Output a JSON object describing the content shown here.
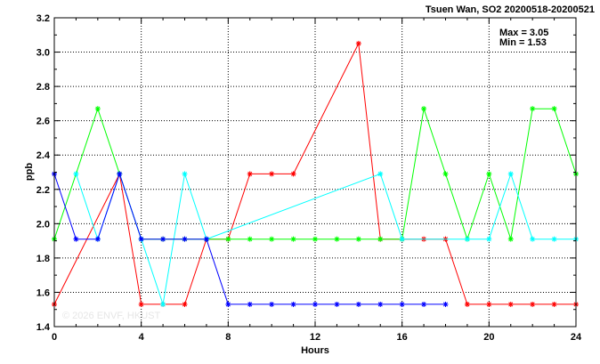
{
  "chart_data": {
    "type": "line",
    "title": "Tsuen Wan, SO2 20200518-20200521",
    "xlabel": "Hours",
    "ylabel": "ppb",
    "xlim": [
      0,
      24
    ],
    "ylim": [
      1.4,
      3.2
    ],
    "x_ticks": [
      0,
      4,
      8,
      12,
      16,
      20,
      24
    ],
    "x_tick_labels": [
      "0",
      "4",
      "8",
      "12",
      "16",
      "20",
      "24"
    ],
    "y_ticks": [
      1.4,
      1.6,
      1.8,
      2.0,
      2.2,
      2.4,
      2.6,
      2.8,
      3.0,
      3.2
    ],
    "y_tick_labels": [
      "1.4",
      "1.6",
      "1.8",
      "2.0",
      "2.2",
      "2.4",
      "2.6",
      "2.8",
      "3.0",
      "3.2"
    ],
    "grid": true,
    "stats": {
      "max": "Max = 3.05",
      "min": "Min = 1.53"
    },
    "watermark": "© 2026 ENVF, HKUST",
    "x": [
      0,
      1,
      2,
      3,
      4,
      5,
      6,
      7,
      8,
      9,
      10,
      11,
      12,
      13,
      14,
      15,
      16,
      17,
      18,
      19,
      20,
      21,
      22,
      23,
      24
    ],
    "series": [
      {
        "color": "#ff0000",
        "values": [
          1.53,
          null,
          null,
          2.29,
          1.53,
          1.53,
          1.53,
          1.91,
          1.91,
          2.29,
          2.29,
          2.29,
          null,
          null,
          3.05,
          1.91,
          1.91,
          1.91,
          1.91,
          1.53,
          1.53,
          1.53,
          1.53,
          1.53,
          1.53
        ]
      },
      {
        "color": "#00ff00",
        "values": [
          1.91,
          null,
          2.67,
          2.29,
          1.91,
          1.91,
          1.91,
          1.91,
          1.91,
          1.91,
          1.91,
          1.91,
          1.91,
          1.91,
          1.91,
          1.91,
          1.91,
          2.67,
          2.29,
          1.91,
          2.29,
          1.91,
          2.67,
          2.67,
          2.29
        ]
      },
      {
        "color": "#00ffff",
        "values": [
          null,
          2.29,
          1.91,
          2.29,
          1.91,
          1.53,
          2.29,
          1.91,
          null,
          null,
          null,
          null,
          null,
          null,
          null,
          2.29,
          1.91,
          null,
          null,
          1.91,
          1.91,
          2.29,
          1.91,
          1.91,
          1.91
        ]
      },
      {
        "color": "#0000ff",
        "values": [
          2.29,
          1.91,
          1.91,
          2.29,
          1.91,
          1.91,
          1.91,
          1.91,
          1.53,
          1.53,
          1.53,
          1.53,
          1.53,
          1.53,
          1.53,
          1.53,
          1.53,
          1.53,
          1.53,
          null,
          null,
          null,
          null,
          null,
          null
        ]
      }
    ]
  }
}
